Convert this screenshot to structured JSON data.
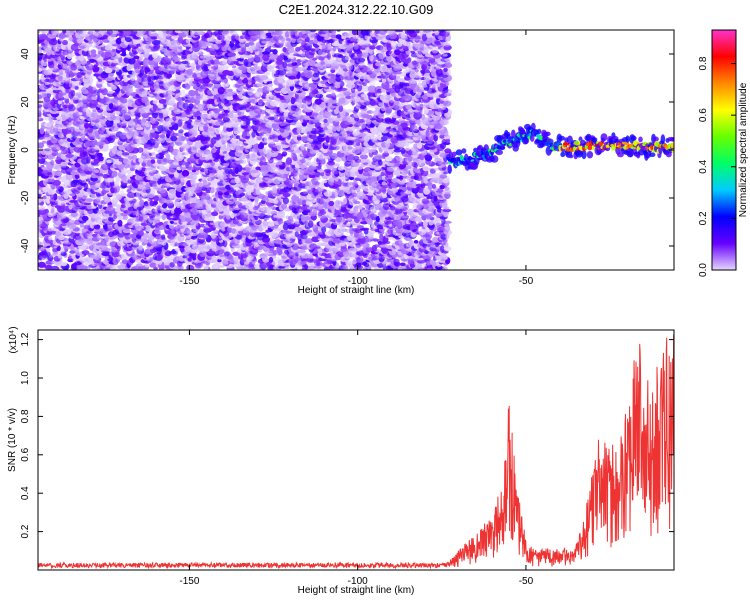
{
  "title": "C2E1.2024.312.22.10.G09",
  "chart_data": [
    {
      "type": "heatmap",
      "xlabel": "Height of straight line (km)",
      "ylabel": "Frequency (Hz)",
      "xlim": [
        -195,
        -6
      ],
      "ylim": [
        -50,
        50
      ],
      "xticks": [
        -150,
        -100,
        -50
      ],
      "yticks": [
        -40,
        -20,
        0,
        20,
        40
      ],
      "colorbar": {
        "label": "Normalized spectral amplitude",
        "range": [
          0,
          0.93
        ],
        "ticks": [
          0.0,
          0.2,
          0.4,
          0.6,
          0.8
        ],
        "colors": [
          "#e6d6ff",
          "#6600ff",
          "#0000ff",
          "#00ccff",
          "#00ff66",
          "#66ff00",
          "#ffff00",
          "#ff8800",
          "#ff0000",
          "#ff33cc"
        ]
      },
      "noise_region": {
        "x": [
          -195,
          -73
        ],
        "y": [
          -50,
          50
        ]
      },
      "signal_trace": [
        {
          "x": -73,
          "y": -5
        },
        {
          "x": -68,
          "y": -4
        },
        {
          "x": -62,
          "y": -2
        },
        {
          "x": -57,
          "y": 2
        },
        {
          "x": -52,
          "y": 5
        },
        {
          "x": -47,
          "y": 7
        },
        {
          "x": -43,
          "y": 2
        },
        {
          "x": -38,
          "y": 1
        },
        {
          "x": -30,
          "y": 2
        },
        {
          "x": -20,
          "y": 2
        },
        {
          "x": -10,
          "y": 1
        },
        {
          "x": -6,
          "y": 1
        }
      ]
    },
    {
      "type": "line",
      "xlabel": "Height of straight line (km)",
      "ylabel": "SNR (10 * v/v)",
      "y_multiplier": "(x10⁴)",
      "xlim": [
        -195,
        -6
      ],
      "ylim": [
        0,
        1.25
      ],
      "xticks": [
        -150,
        -100,
        -50
      ],
      "yticks": [
        0.2,
        0.4,
        0.6,
        0.8,
        1.0,
        1.2
      ],
      "series": [
        {
          "color": "#ee3333",
          "x": [
            -195,
            -150,
            -100,
            -75,
            -72,
            -68,
            -64,
            -60,
            -57,
            -55,
            -53,
            -50,
            -47,
            -44,
            -42,
            -40,
            -36,
            -33,
            -30,
            -28,
            -25,
            -22,
            -19,
            -17,
            -14,
            -12,
            -10,
            -7
          ],
          "y": [
            0.02,
            0.02,
            0.02,
            0.02,
            0.06,
            0.15,
            0.2,
            0.3,
            0.45,
            0.89,
            0.5,
            0.15,
            0.1,
            0.12,
            0.1,
            0.12,
            0.1,
            0.25,
            0.55,
            0.72,
            0.65,
            0.75,
            1.0,
            1.25,
            1.0,
            0.95,
            1.18,
            1.24
          ]
        }
      ]
    }
  ]
}
